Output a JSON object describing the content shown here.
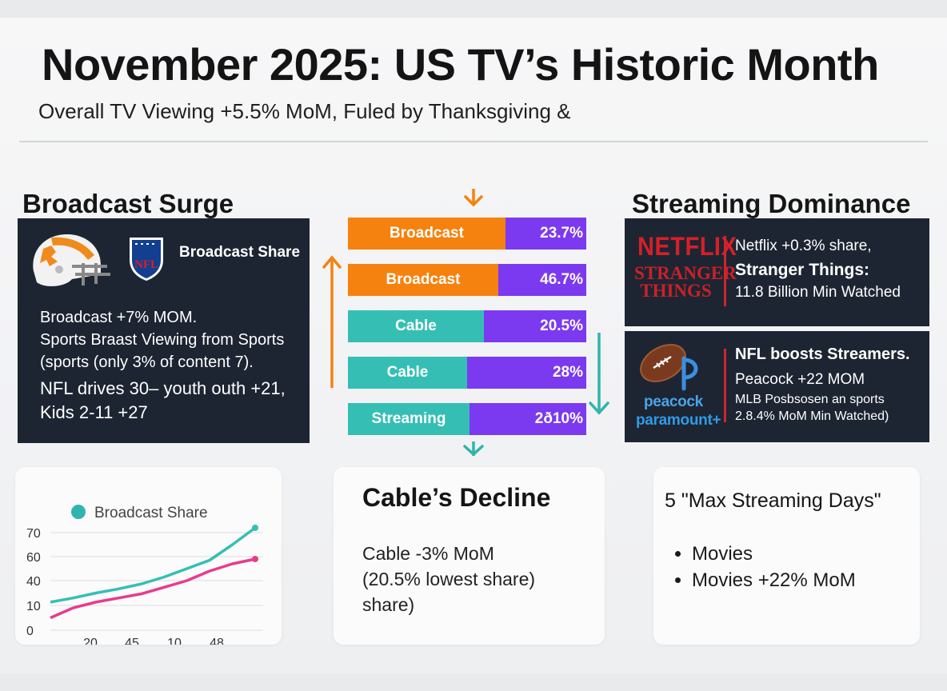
{
  "header": {
    "title": "November 2025: US TV’s Historic Month",
    "subtitle": "Overall TV Viewing +5.5% MoM, Fuled by Thanksgiving &"
  },
  "broadcast": {
    "heading": "Broadcast Surge",
    "logo_text": "NFL",
    "share_label": "Broadcast Share",
    "lines": [
      "Broadcast +7% MOM.",
      "Sports Braast Viewing from Sports",
      "(sports (only 3% of content 7).",
      "NFL drives 30– youth outh +21,",
      "Kids 2-11 +27"
    ]
  },
  "streaming": {
    "heading": "Streaming Dominance",
    "panel1": {
      "logo_netflix": "NETFLIX",
      "logo_show_line1": "STRANGER",
      "logo_show_line2": "THINGS",
      "line1": "Netflix +0.3% share,",
      "line2": "Stranger Things:",
      "line3": "11.8 Billion Min Watched"
    },
    "panel2": {
      "logo_peacock": "peacock",
      "logo_paramount": "paramount+",
      "line1": "NFL boosts Streamers.",
      "line2": "Peacock +22  MOM",
      "line3": "MLB Posbsosen an sports",
      "line4": "2.8.4% MoM Min Watched)"
    }
  },
  "cable": {
    "heading": "Cable’s Decline",
    "lines": [
      "Cable -3% MoM",
      "(20.5% lowest share)",
      "share)"
    ]
  },
  "max_streaming": {
    "heading": "5 \"Max Streaming Days\"",
    "items": [
      "Movies",
      "Movies +22% MoM"
    ]
  },
  "colors": {
    "broadcast": "#f5820f",
    "cable": "#35bfb4",
    "share": "#7b3af0",
    "arrow_orange": "#f5820f",
    "arrow_teal": "#2fb5ad",
    "pink": "#ea3a8c"
  },
  "chart_data": [
    {
      "type": "bar",
      "subtype": "stacked-horizontal",
      "categories": [
        "Broadcast",
        "Broadcast",
        "Cable",
        "Cable",
        "Streaming"
      ],
      "category_share_fraction": [
        0.66,
        0.63,
        0.57,
        0.5,
        0.51
      ],
      "value_labels": [
        "23.7%",
        "46.7%",
        "20.5%",
        "28%",
        "2ð10%"
      ],
      "category_colors": [
        "#f5820f",
        "#f5820f",
        "#35bfb4",
        "#35bfb4",
        "#35bfb4"
      ],
      "value_color": "#7b3af0"
    },
    {
      "type": "line",
      "legend": [
        "Broadcast Share"
      ],
      "legend_position": "top",
      "x_tick_labels": [
        "20",
        "45",
        "10",
        "48"
      ],
      "y_ticks": [
        0,
        10,
        40,
        60,
        70
      ],
      "ylim": [
        0,
        75
      ],
      "grid": true,
      "series": [
        {
          "name": "Broadcast Share",
          "color": "#35bfb4",
          "values": [
            14,
            19,
            25,
            30,
            36,
            43,
            50,
            57,
            65,
            72
          ]
        },
        {
          "name": "",
          "color": "#ea3a8c",
          "values": [
            5,
            9,
            14,
            19,
            24,
            32,
            40,
            48,
            54,
            58
          ]
        }
      ]
    }
  ]
}
